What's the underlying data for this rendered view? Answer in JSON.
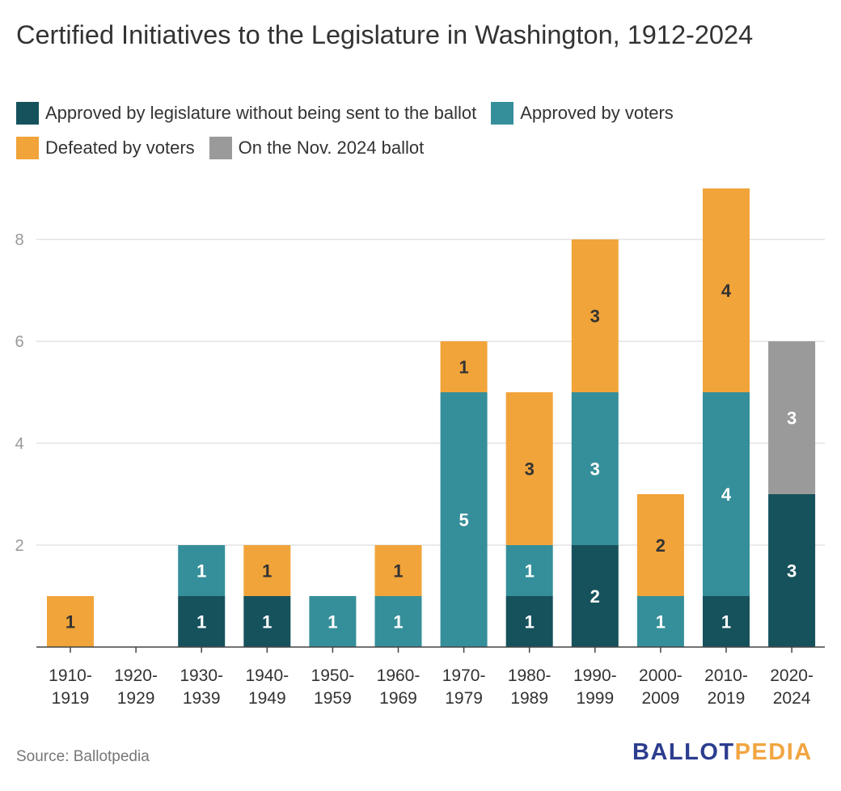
{
  "title": "Certified Initiatives to the Legislature in Washington, 1912-2024",
  "source": "Source: Ballotpedia",
  "logo": {
    "part1": "BALLOT",
    "part2": "PEDIA"
  },
  "chart_data": {
    "type": "bar",
    "stacked": true,
    "title": "Certified Initiatives to the Legislature in Washington, 1912-2024",
    "xlabel": "",
    "ylabel": "",
    "ylim": [
      0,
      9
    ],
    "yticks": [
      2,
      4,
      6,
      8
    ],
    "grid": true,
    "legend_position": "top",
    "categories": [
      [
        "1910-",
        "1919"
      ],
      [
        "1920-",
        "1929"
      ],
      [
        "1930-",
        "1939"
      ],
      [
        "1940-",
        "1949"
      ],
      [
        "1950-",
        "1959"
      ],
      [
        "1960-",
        "1969"
      ],
      [
        "1970-",
        "1979"
      ],
      [
        "1980-",
        "1989"
      ],
      [
        "1990-",
        "1999"
      ],
      [
        "2000-",
        "2009"
      ],
      [
        "2010-",
        "2019"
      ],
      [
        "2020-",
        "2024"
      ]
    ],
    "series": [
      {
        "name": "Approved by legislature without being sent to the ballot",
        "color": "#16525c",
        "label_color": "#ffffff",
        "values": [
          0,
          0,
          1,
          1,
          0,
          0,
          0,
          1,
          2,
          0,
          1,
          3
        ]
      },
      {
        "name": "Approved by voters",
        "color": "#358f9a",
        "label_color": "#ffffff",
        "values": [
          0,
          0,
          1,
          0,
          1,
          1,
          5,
          1,
          3,
          1,
          4,
          0
        ]
      },
      {
        "name": "Defeated by voters",
        "color": "#f1a43a",
        "label_color": "#333333",
        "values": [
          1,
          0,
          0,
          1,
          0,
          1,
          1,
          3,
          3,
          2,
          4,
          0
        ]
      },
      {
        "name": "On the Nov. 2024 ballot",
        "color": "#9a9a9a",
        "label_color": "#ffffff",
        "values": [
          0,
          0,
          0,
          0,
          0,
          0,
          0,
          0,
          0,
          0,
          0,
          3
        ]
      }
    ]
  }
}
